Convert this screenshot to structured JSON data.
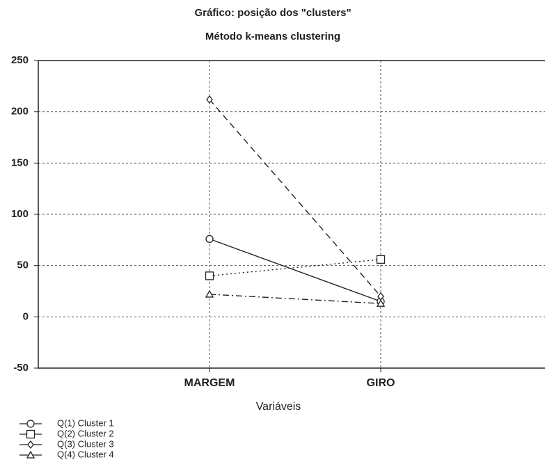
{
  "chart_data": {
    "type": "line",
    "title": "Gráfico: posição dos \"clusters\"",
    "subtitle": "Método k-means clustering",
    "x_label": "Variáveis",
    "categories": [
      "MARGEM",
      "GIRO"
    ],
    "ylim": [
      -50,
      250
    ],
    "yticks": [
      -50,
      0,
      50,
      100,
      150,
      200,
      250
    ],
    "grid": true,
    "series": [
      {
        "name": "Q(1)  Cluster 1",
        "color": "#222222",
        "marker": "circle",
        "line_style": "solid",
        "values": [
          76,
          15
        ]
      },
      {
        "name": "Q(2)  Cluster 2",
        "color": "#222222",
        "marker": "square",
        "line_style": "dotted",
        "values": [
          40,
          56
        ]
      },
      {
        "name": "Q(3)  Cluster 3",
        "color": "#222222",
        "marker": "diamond",
        "line_style": "dashed",
        "values": [
          212,
          20
        ]
      },
      {
        "name": "Q(4)  Cluster 4",
        "color": "#222222",
        "marker": "triangle",
        "line_style": "dashdot",
        "values": [
          22,
          13
        ]
      }
    ]
  }
}
